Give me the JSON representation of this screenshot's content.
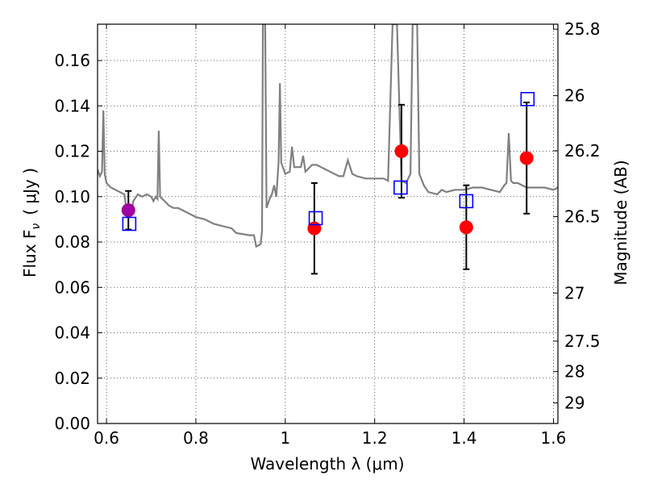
{
  "chart_data": {
    "type": "scatter",
    "xlabel": "Wavelength  λ (μm)",
    "ylabel": "Flux  F",
    "ylabel_sub": "ν",
    "ylabel_unit": "( μJy )",
    "right_ylabel": "Magnitude (AB)",
    "xlim": [
      0.58,
      1.61
    ],
    "ylim": [
      0.0,
      0.176
    ],
    "grid": true,
    "x_ticks": [
      {
        "value": 0.6,
        "label": "0.6"
      },
      {
        "value": 0.8,
        "label": "0.8"
      },
      {
        "value": 1.0,
        "label": "1"
      },
      {
        "value": 1.2,
        "label": "1.2"
      },
      {
        "value": 1.4,
        "label": "1.4"
      },
      {
        "value": 1.6,
        "label": "1.6"
      }
    ],
    "y_ticks": [
      {
        "value": 0.0,
        "label": "0.00"
      },
      {
        "value": 0.02,
        "label": "0.02"
      },
      {
        "value": 0.04,
        "label": "0.04"
      },
      {
        "value": 0.06,
        "label": "0.06"
      },
      {
        "value": 0.08,
        "label": "0.08"
      },
      {
        "value": 0.1,
        "label": "0.10"
      },
      {
        "value": 0.12,
        "label": "0.12"
      },
      {
        "value": 0.14,
        "label": "0.14"
      },
      {
        "value": 0.16,
        "label": "0.16"
      }
    ],
    "right_y_ticks": [
      {
        "flux": 0.1738,
        "label": "25.8"
      },
      {
        "flux": 0.1445,
        "label": "26"
      },
      {
        "flux": 0.1202,
        "label": "26.2"
      },
      {
        "flux": 0.0912,
        "label": "26.5"
      },
      {
        "flux": 0.0575,
        "label": "27"
      },
      {
        "flux": 0.0363,
        "label": "27.5"
      },
      {
        "flux": 0.0229,
        "label": "28"
      },
      {
        "flux": 0.0091,
        "label": "29"
      }
    ],
    "series": [
      {
        "kind": "model-spectrum",
        "color": "#808080",
        "points": [
          [
            0.58,
            0.112
          ],
          [
            0.585,
            0.109
          ],
          [
            0.59,
            0.111
          ],
          [
            0.593,
            0.138
          ],
          [
            0.596,
            0.11
          ],
          [
            0.6,
            0.106
          ],
          [
            0.61,
            0.104
          ],
          [
            0.62,
            0.103
          ],
          [
            0.63,
            0.102
          ],
          [
            0.64,
            0.101
          ],
          [
            0.645,
            0.094
          ],
          [
            0.65,
            0.095
          ],
          [
            0.655,
            0.092
          ],
          [
            0.66,
            0.098
          ],
          [
            0.67,
            0.101
          ],
          [
            0.68,
            0.1
          ],
          [
            0.69,
            0.101
          ],
          [
            0.7,
            0.1
          ],
          [
            0.705,
            0.098
          ],
          [
            0.71,
            0.1
          ],
          [
            0.714,
            0.099
          ],
          [
            0.717,
            0.129
          ],
          [
            0.72,
            0.1
          ],
          [
            0.73,
            0.098
          ],
          [
            0.74,
            0.096
          ],
          [
            0.75,
            0.095
          ],
          [
            0.76,
            0.095
          ],
          [
            0.77,
            0.094
          ],
          [
            0.78,
            0.093
          ],
          [
            0.8,
            0.091
          ],
          [
            0.82,
            0.09
          ],
          [
            0.84,
            0.088
          ],
          [
            0.86,
            0.087
          ],
          [
            0.88,
            0.086
          ],
          [
            0.89,
            0.084
          ],
          [
            0.92,
            0.083
          ],
          [
            0.93,
            0.083
          ],
          [
            0.935,
            0.078
          ],
          [
            0.945,
            0.079
          ],
          [
            0.948,
            0.085
          ],
          [
            0.95,
            0.176
          ],
          [
            0.955,
            0.176
          ],
          [
            0.958,
            0.095
          ],
          [
            0.965,
            0.099
          ],
          [
            0.97,
            0.101
          ],
          [
            0.975,
            0.105
          ],
          [
            0.98,
            0.1
          ],
          [
            0.985,
            0.115
          ],
          [
            0.988,
            0.15
          ],
          [
            0.991,
            0.115
          ],
          [
            1.0,
            0.11
          ],
          [
            1.01,
            0.111
          ],
          [
            1.015,
            0.122
          ],
          [
            1.02,
            0.113
          ],
          [
            1.03,
            0.113
          ],
          [
            1.035,
            0.113
          ],
          [
            1.04,
            0.118
          ],
          [
            1.045,
            0.111
          ],
          [
            1.05,
            0.112
          ],
          [
            1.06,
            0.114
          ],
          [
            1.07,
            0.114
          ],
          [
            1.08,
            0.113
          ],
          [
            1.09,
            0.112
          ],
          [
            1.1,
            0.111
          ],
          [
            1.12,
            0.109
          ],
          [
            1.13,
            0.109
          ],
          [
            1.14,
            0.116
          ],
          [
            1.15,
            0.11
          ],
          [
            1.16,
            0.109
          ],
          [
            1.18,
            0.108
          ],
          [
            1.2,
            0.108
          ],
          [
            1.22,
            0.108
          ],
          [
            1.23,
            0.107
          ],
          [
            1.24,
            0.176
          ],
          [
            1.25,
            0.176
          ],
          [
            1.26,
            0.107
          ],
          [
            1.27,
            0.106
          ],
          [
            1.28,
            0.11
          ],
          [
            1.285,
            0.176
          ],
          [
            1.295,
            0.176
          ],
          [
            1.3,
            0.11
          ],
          [
            1.31,
            0.105
          ],
          [
            1.32,
            0.102
          ],
          [
            1.34,
            0.101
          ],
          [
            1.35,
            0.103
          ],
          [
            1.36,
            0.102
          ],
          [
            1.38,
            0.103
          ],
          [
            1.4,
            0.103
          ],
          [
            1.42,
            0.104
          ],
          [
            1.44,
            0.104
          ],
          [
            1.46,
            0.103
          ],
          [
            1.48,
            0.102
          ],
          [
            1.49,
            0.105
          ],
          [
            1.495,
            0.106
          ],
          [
            1.5,
            0.128
          ],
          [
            1.505,
            0.107
          ],
          [
            1.51,
            0.106
          ],
          [
            1.52,
            0.106
          ],
          [
            1.54,
            0.104
          ],
          [
            1.56,
            0.104
          ],
          [
            1.58,
            0.104
          ],
          [
            1.6,
            0.103
          ],
          [
            1.61,
            0.104
          ]
        ]
      },
      {
        "kind": "measured",
        "marker": "circle",
        "color": "#ff0000",
        "points": [
          {
            "x": 1.065,
            "y": 0.086,
            "err": 0.02
          },
          {
            "x": 1.26,
            "y": 0.12,
            "err": 0.0205
          },
          {
            "x": 1.405,
            "y": 0.0865,
            "err": 0.0185
          },
          {
            "x": 1.54,
            "y": 0.117,
            "err": 0.0245
          }
        ]
      },
      {
        "kind": "measured-optical",
        "marker": "circle",
        "color": "#a000a0",
        "points": [
          {
            "x": 0.649,
            "y": 0.094,
            "err": 0.0085
          }
        ]
      },
      {
        "kind": "model-photometry",
        "marker": "square-open",
        "color": "#0000ff",
        "points": [
          {
            "x": 0.651,
            "y": 0.088
          },
          {
            "x": 1.068,
            "y": 0.0905
          },
          {
            "x": 1.258,
            "y": 0.104
          },
          {
            "x": 1.405,
            "y": 0.098
          },
          {
            "x": 1.542,
            "y": 0.143
          }
        ]
      }
    ]
  }
}
